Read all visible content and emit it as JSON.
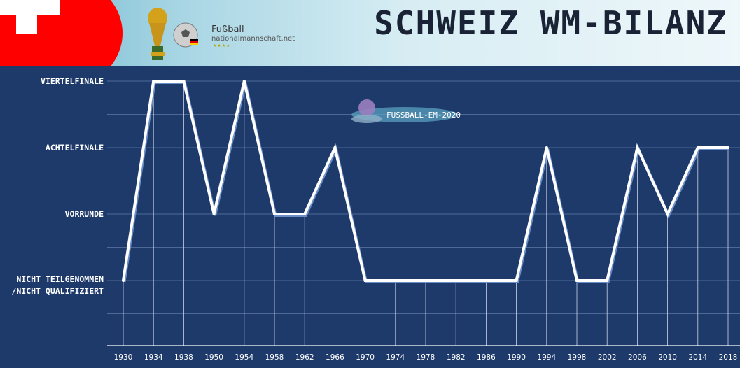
{
  "header": {
    "title": "SCHWEIZ WM-BILANZ",
    "site_name_top": "Fußball",
    "site_name_bottom": "nationalmannschaft.net",
    "watermark": "FUSSBALL-EM-2020",
    "colors": {
      "flag_red": "#ff0000",
      "chart_bg": "#1e3a6a",
      "line": "#ffffff"
    }
  },
  "chart_data": {
    "type": "line",
    "title": "SCHWEIZ WM-BILANZ",
    "y_categories": [
      "NICHT TEILGENOMMEN /NICHT QUALIFIZIERT",
      "VORRUNDE",
      "ACHTELFINALE",
      "VIERTELFINALE"
    ],
    "y_labels": [
      {
        "lines": [
          "NICHT TEILGENOMMEN",
          "/NICHT QUALIFIZIERT"
        ]
      },
      {
        "lines": [
          "VORRUNDE"
        ]
      },
      {
        "lines": [
          "ACHTELFINALE"
        ]
      },
      {
        "lines": [
          "VIERTELFINALE"
        ]
      }
    ],
    "x": [
      1930,
      1934,
      1938,
      1950,
      1954,
      1958,
      1962,
      1966,
      1970,
      1974,
      1978,
      1982,
      1986,
      1990,
      1994,
      1998,
      2002,
      2006,
      2010,
      2014,
      2018
    ],
    "series": [
      {
        "values": [
          0,
          3,
          3,
          1,
          3,
          1,
          1,
          2,
          0,
          0,
          0,
          0,
          0,
          0,
          2,
          0,
          0,
          2,
          1,
          2,
          2
        ]
      }
    ],
    "grid": true
  }
}
